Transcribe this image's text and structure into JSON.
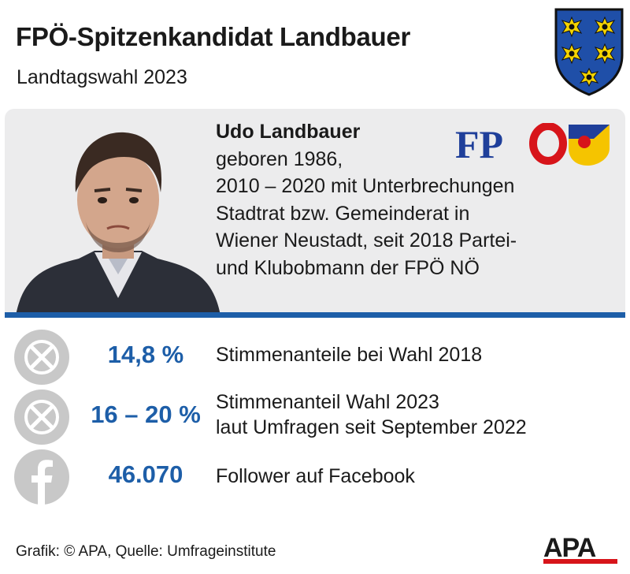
{
  "header": {
    "title": "FPÖ-Spitzenkandidat Landbauer",
    "subtitle": "Landtagswahl 2023"
  },
  "profile": {
    "name": "Udo Landbauer",
    "bio_lines": [
      "geboren 1986,",
      "2010 – 2020 mit Unterbrechungen",
      "Stadtrat bzw. Gemeinderat in",
      "Wiener Neustadt, seit 2018 Partei-",
      "und Klubobmann der FPÖ NÖ"
    ],
    "party_logo_text": "FPÖ"
  },
  "stats": [
    {
      "icon": "ballot-cross-icon",
      "value": "14,8 %",
      "desc": [
        "Stimmenanteile bei Wahl 2018"
      ]
    },
    {
      "icon": "ballot-cross-icon",
      "value": "16 – 20 %",
      "desc": [
        "Stimmenanteil Wahl 2023",
        "laut Umfragen seit September 2022"
      ]
    },
    {
      "icon": "facebook-icon",
      "value": "46.070",
      "desc": [
        "Follower auf Facebook"
      ]
    }
  ],
  "footer": {
    "credit": "Grafik: © APA, Quelle: Umfrageinstitute",
    "agency_logo": "APA"
  },
  "colors": {
    "accent_blue": "#1d5ea8",
    "panel_gray": "#ececed",
    "icon_gray": "#c8c8c8",
    "fpo_blue": "#1f3f9a",
    "fpo_red": "#d7141a",
    "crest_yellow": "#f5d400",
    "apa_red": "#d7141a"
  }
}
